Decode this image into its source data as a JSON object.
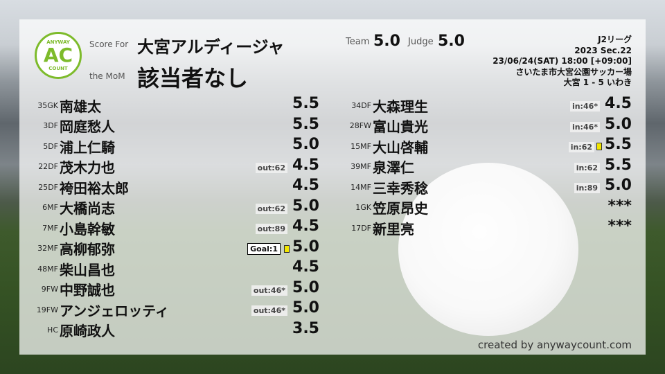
{
  "header": {
    "logo_text": "AC",
    "logo_top": "ANYWAY",
    "logo_bottom": "COUNT",
    "score_for_label": "Score For",
    "team_name": "大宮アルディージャ",
    "mom_label": "the MoM",
    "mom_value": "該当者なし",
    "team_label": "Team",
    "team_score": "5.0",
    "judge_label": "Judge",
    "judge_score": "5.0"
  },
  "match": {
    "league": "J2リーグ",
    "section": "2023 Sec.22",
    "datetime": "23/06/24(SAT) 18:00 [+09:00]",
    "venue": "さいたま市大宮公園サッカー場",
    "result": "大宮 1 - 5 いわき"
  },
  "left_players": [
    {
      "num": "35",
      "pos": "GK",
      "name": "南雄太",
      "score": "5.5"
    },
    {
      "num": "3",
      "pos": "DF",
      "name": "岡庭愁人",
      "score": "5.5"
    },
    {
      "num": "5",
      "pos": "DF",
      "name": "浦上仁騎",
      "score": "5.0"
    },
    {
      "num": "22",
      "pos": "DF",
      "name": "茂木力也",
      "score": "4.5",
      "badge": "out:62"
    },
    {
      "num": "25",
      "pos": "DF",
      "name": "袴田裕太郎",
      "score": "4.5"
    },
    {
      "num": "6",
      "pos": "MF",
      "name": "大橋尚志",
      "score": "5.0",
      "badge": "out:62"
    },
    {
      "num": "7",
      "pos": "MF",
      "name": "小島幹敏",
      "score": "4.5",
      "badge": "out:89"
    },
    {
      "num": "32",
      "pos": "MF",
      "name": "高柳郁弥",
      "score": "5.0",
      "goal": "Goal:1",
      "card": "yellow"
    },
    {
      "num": "48",
      "pos": "MF",
      "name": "柴山昌也",
      "score": "4.5"
    },
    {
      "num": "9",
      "pos": "FW",
      "name": "中野誠也",
      "score": "5.0",
      "badge": "out:46*"
    },
    {
      "num": "19",
      "pos": "FW",
      "name": "アンジェロッティ",
      "score": "5.0",
      "badge": "out:46*"
    },
    {
      "num": "",
      "pos": "HC",
      "name": "原崎政人",
      "score": "3.5"
    }
  ],
  "right_players": [
    {
      "num": "34",
      "pos": "DF",
      "name": "大森理生",
      "score": "4.5",
      "badge": "in:46*"
    },
    {
      "num": "28",
      "pos": "FW",
      "name": "富山貴光",
      "score": "5.0",
      "badge": "in:46*"
    },
    {
      "num": "15",
      "pos": "MF",
      "name": "大山啓輔",
      "score": "5.5",
      "badge": "in:62",
      "card": "yellow"
    },
    {
      "num": "39",
      "pos": "MF",
      "name": "泉澤仁",
      "score": "5.5",
      "badge": "in:62"
    },
    {
      "num": "14",
      "pos": "MF",
      "name": "三幸秀稔",
      "score": "5.0",
      "badge": "in:89"
    },
    {
      "num": "1",
      "pos": "GK",
      "name": "笠原昂史",
      "score": "***"
    },
    {
      "num": "17",
      "pos": "DF",
      "name": "新里亮",
      "score": "***"
    }
  ],
  "footer": {
    "credit": "created by anywaycount.com"
  },
  "colors": {
    "logo_green": "#7dbb2b",
    "yellow_card": "#f2e600"
  }
}
